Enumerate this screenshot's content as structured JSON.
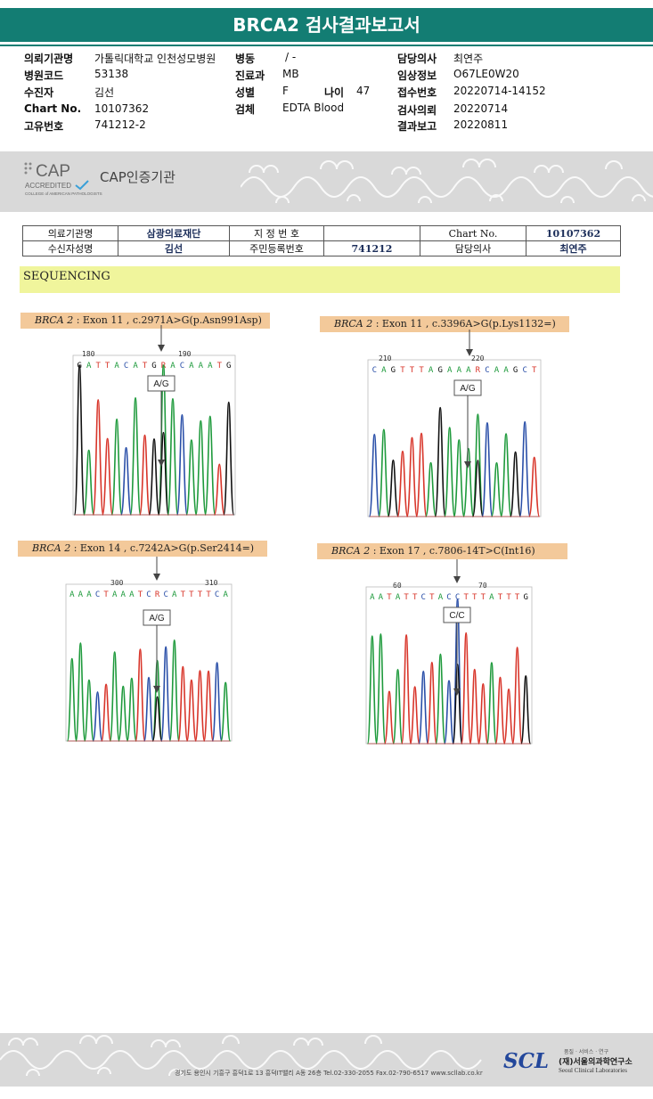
{
  "report": {
    "title": "BRCA2 검사결과보고서",
    "fields": {
      "institution": {
        "label": "의뢰기관명",
        "value": "가톨릭대학교 인천성모병원"
      },
      "ward": {
        "label": "병동",
        "value": "/ -"
      },
      "physician": {
        "label": "담당의사",
        "value": "최연주"
      },
      "hospital_code": {
        "label": "병원코드",
        "value": "53138"
      },
      "department": {
        "label": "진료과",
        "value": "MB"
      },
      "clinical_info": {
        "label": "임상정보",
        "value": "O67LE0W20"
      },
      "patient": {
        "label": "수진자",
        "value": "김선"
      },
      "sex": {
        "label": "성별",
        "value": "F"
      },
      "age": {
        "label": "나이",
        "value": "47"
      },
      "receipt_no": {
        "label": "접수번호",
        "value": "20220714-14152"
      },
      "chart_no": {
        "label": "Chart No.",
        "value": "10107362"
      },
      "specimen": {
        "label": "검체",
        "value": "EDTA Blood"
      },
      "request_date": {
        "label": "검사의뢰",
        "value": "20220714"
      },
      "unique_no": {
        "label": "고유번호",
        "value": "741212-2"
      },
      "report_date": {
        "label": "결과보고",
        "value": "20220811"
      }
    }
  },
  "cap": {
    "logo_text": "CAP",
    "accredited": "ACCREDITED",
    "college": "COLLEGE of AMERICAN PATHOLOGISTS",
    "label": "CAP인증기관"
  },
  "patient_table": {
    "row1": {
      "c1": "의료기관명",
      "c2": "삼광의료재단",
      "c3": "지 정 번 호",
      "c4": "",
      "c5": "Chart No.",
      "c6": "10107362"
    },
    "row2": {
      "c1": "수신자성명",
      "c2": "김선",
      "c3": "주민등록번호",
      "c4": "741212",
      "c5": "담당의사",
      "c6": "최연주"
    }
  },
  "sequencing": {
    "heading": "SEQUENCING",
    "panels": [
      {
        "gene": "BRCA 2",
        "desc": ": Exon 11 , c.2971A>G(p.Asn991Asp)",
        "seq": "GATTACATGRACAAATG",
        "pos1": "180",
        "pos2": "190",
        "call": "A/G"
      },
      {
        "gene": "BRCA 2",
        "desc": ": Exon 11 , c.3396A>G(p.Lys1132=)",
        "seq": "CAGTTTAGAAARCAAGCT",
        "pos1": "210",
        "pos2": "220",
        "call": "A/G"
      },
      {
        "gene": "BRCA 2",
        "desc": ": Exon 14 , c.7242A>G(p.Ser2414=)",
        "seq": "AAACTAAATCRCATTTTCA",
        "pos1": "300",
        "pos2": "310",
        "call": "A/G"
      },
      {
        "gene": "BRCA 2",
        "desc": ": Exon 17 , c.7806-14T>C(Int16)",
        "seq": "AATATTCTACCTTTATTTG",
        "pos1": "60",
        "pos2": "70",
        "call": "C/C"
      }
    ]
  },
  "footer": {
    "address": "경기도 용인시 기흥구 흥덕1로 13 흥덕IT밸리 A동 26층  Tel.02-330-2055  Fax.02-790-6517  www.scllab.co.kr",
    "logo": "SCL",
    "tagline": "품질 · 서비스 · 연구",
    "name_kr": "(재)서울의과학연구소",
    "name_en": "Seoul Clinical Laboratories"
  },
  "colors": {
    "brand_teal": "#137d73",
    "A": "#1e9a3c",
    "C": "#2a4fa8",
    "G": "#111111",
    "T": "#d8352a",
    "R": "#d8352a"
  }
}
